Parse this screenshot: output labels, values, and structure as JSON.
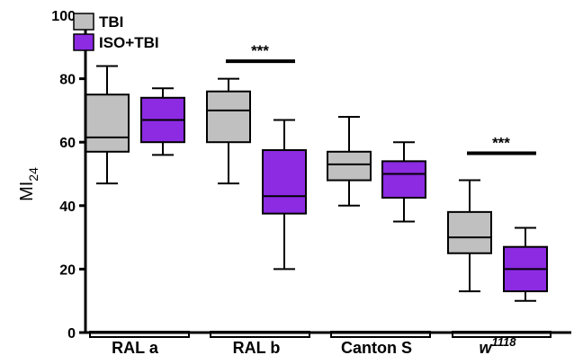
{
  "chart_data": {
    "type": "box",
    "ylabel_main": "MI",
    "ylabel_sub": "24",
    "ylim": [
      0,
      100
    ],
    "yticks": [
      "0",
      "20",
      "40",
      "60",
      "80",
      "100"
    ],
    "categories": [
      {
        "main": "RAL a",
        "sup": ""
      },
      {
        "main": "RAL b",
        "sup": ""
      },
      {
        "main": "Canton S",
        "sup": ""
      },
      {
        "main": "w",
        "sup": "1118"
      }
    ],
    "series": [
      {
        "name": "TBI",
        "color": "#c0c0c0",
        "boxes": [
          {
            "min": 47,
            "q1": 57,
            "median": 61.5,
            "q3": 75,
            "max": 84
          },
          {
            "min": 47,
            "q1": 60,
            "median": 70,
            "q3": 76,
            "max": 80
          },
          {
            "min": 40,
            "q1": 48,
            "median": 53,
            "q3": 57,
            "max": 68
          },
          {
            "min": 13,
            "q1": 25,
            "median": 30,
            "q3": 38,
            "max": 48
          }
        ]
      },
      {
        "name": "ISO+TBI",
        "color": "#8c2be2",
        "boxes": [
          {
            "min": 56,
            "q1": 60,
            "median": 67,
            "q3": 74,
            "max": 77
          },
          {
            "min": 20,
            "q1": 37.5,
            "median": 43,
            "q3": 57.5,
            "max": 67
          },
          {
            "min": 35,
            "q1": 42.5,
            "median": 50,
            "q3": 54,
            "max": 60
          },
          {
            "min": 10,
            "q1": 13,
            "median": 20,
            "q3": 27,
            "max": 33
          }
        ]
      }
    ],
    "significance": [
      {
        "category_index": 1,
        "label": "***",
        "y": 85.5
      },
      {
        "category_index": 3,
        "label": "***",
        "y": 56.5
      }
    ],
    "legend": {
      "position": "top-left"
    }
  }
}
